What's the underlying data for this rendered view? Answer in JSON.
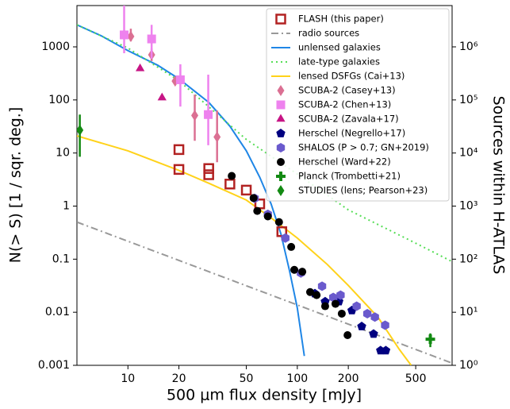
{
  "chart_data": {
    "type": "scatter",
    "x_label": "500 μm flux density [mJy]",
    "y_label": "N(> S) [1 / sqr. deg.]",
    "y2_label": "Sources within H-ATLAS",
    "x_log": true,
    "y_log": true,
    "xlim": [
      5,
      820
    ],
    "ylim": [
      0.001,
      6000
    ],
    "y2lim": [
      1,
      6000000
    ],
    "xticks": [
      10,
      20,
      50,
      100,
      200,
      500
    ],
    "yticks": [
      0.001,
      0.01,
      0.1,
      1,
      10,
      100,
      1000
    ],
    "y2ticks": [
      {
        "value": 1,
        "label": "10⁰"
      },
      {
        "value": 10,
        "label": "10¹"
      },
      {
        "value": 100,
        "label": "10²"
      },
      {
        "value": 1000,
        "label": "10³"
      },
      {
        "value": 10000,
        "label": "10⁴"
      },
      {
        "value": 100000,
        "label": "10⁵"
      },
      {
        "value": 1000000,
        "label": "10⁶"
      }
    ],
    "legend": "upper right",
    "series": [
      {
        "name": "FLASH (this paper)",
        "color": "#b22222",
        "marker": "square-open",
        "x": [
          20,
          30,
          40,
          50,
          60,
          81,
          20,
          30
        ],
        "values": [
          4.9,
          3.9,
          2.6,
          2.0,
          1.1,
          0.33,
          11.6,
          5.1
        ]
      },
      {
        "name": "radio sources",
        "color": "#999999",
        "line": "dashdot",
        "x": [
          5,
          820
        ],
        "values": [
          0.5,
          0.0011
        ]
      },
      {
        "name": "unlensed galaxies",
        "color": "#1f86e6",
        "line": "solid",
        "x": [
          5,
          7,
          10,
          15,
          20,
          30,
          40,
          50,
          60,
          70,
          80,
          90,
          100,
          110
        ],
        "values": [
          2600,
          1600,
          850,
          450,
          250,
          90,
          32,
          11,
          3.5,
          1.1,
          0.3,
          0.06,
          0.012,
          0.0015
        ]
      },
      {
        "name": "late-type galaxies",
        "color": "#55dd55",
        "line": "dotted",
        "x": [
          5,
          10,
          20,
          50,
          100,
          200,
          500,
          820
        ],
        "values": [
          2600,
          950,
          230,
          18,
          4,
          0.85,
          0.2,
          0.09
        ]
      },
      {
        "name": "lensed DSFGs (Cai+13)",
        "color": "#ffd21a",
        "line": "solid",
        "x": [
          5,
          10,
          20,
          30,
          50,
          70,
          100,
          150,
          200,
          300,
          400,
          470
        ],
        "values": [
          21,
          11,
          4.7,
          2.7,
          1.3,
          0.6,
          0.25,
          0.08,
          0.032,
          0.008,
          0.002,
          0.001
        ]
      },
      {
        "name": "SCUBA-2 (Casey+13)",
        "color": "#db7093",
        "marker": "diamond",
        "x": [
          10.4,
          13.8,
          19,
          24.8,
          33.6
        ],
        "values": [
          1570,
          710,
          226,
          51,
          20
        ],
        "lower": [
          1270,
          540,
          190,
          17,
          6.7
        ],
        "upper": [
          2200,
          930,
          270,
          126,
          63
        ]
      },
      {
        "name": "SCUBA-2 (Chen+13)",
        "color": "#ee82ee",
        "marker": "square",
        "x": [
          9.5,
          13.8,
          20.4,
          29.8
        ],
        "values": [
          1680,
          1410,
          240,
          53
        ],
        "lower": [
          760,
          600,
          75,
          14
        ],
        "upper": [
          6900,
          2600,
          470,
          300
        ]
      },
      {
        "name": "SCUBA-2 (Zavala+17)",
        "color": "#c71585",
        "marker": "triangle",
        "x": [
          11.8,
          15.9
        ],
        "values": [
          390,
          110
        ]
      },
      {
        "name": "Herschel (Negrello+17)",
        "color": "#000080",
        "marker": "pentagon",
        "x": [
          127,
          146,
          176,
          210,
          240,
          282,
          310,
          333
        ],
        "values": [
          0.0225,
          0.0159,
          0.0159,
          0.0108,
          0.0054,
          0.0039,
          0.0019,
          0.0019
        ]
      },
      {
        "name": "SHALOS (P > 0.7; GN+2019)",
        "color": "#6a5acd",
        "marker": "hexagon",
        "x": [
          56,
          67,
          85,
          105,
          140,
          163,
          180,
          224,
          259,
          287,
          330
        ],
        "values": [
          1.4,
          0.7,
          0.25,
          0.055,
          0.031,
          0.019,
          0.021,
          0.013,
          0.0094,
          0.0081,
          0.0057
        ]
      },
      {
        "name": "Herschel (Ward+22)",
        "color": "#000000",
        "marker": "circle",
        "x": [
          41,
          55.2,
          58,
          67,
          78,
          92,
          96,
          107,
          119,
          130,
          146,
          168,
          183,
          198
        ],
        "values": [
          3.7,
          1.42,
          0.81,
          0.64,
          0.5,
          0.17,
          0.063,
          0.058,
          0.024,
          0.021,
          0.013,
          0.0144,
          0.0094,
          0.0037
        ]
      },
      {
        "name": "Planck (Trombetti+21)",
        "color": "#138a13",
        "marker": "plus",
        "x": [
          610
        ],
        "values": [
          0.0031
        ],
        "lower": [
          0.0022
        ],
        "upper": [
          0.004
        ]
      },
      {
        "name": "STUDIES (lens; Pearson+23)",
        "color": "#138a13",
        "marker": "diamond",
        "x": [
          5.2
        ],
        "values": [
          27
        ],
        "lower": [
          8.5
        ],
        "upper": [
          53
        ]
      }
    ]
  }
}
